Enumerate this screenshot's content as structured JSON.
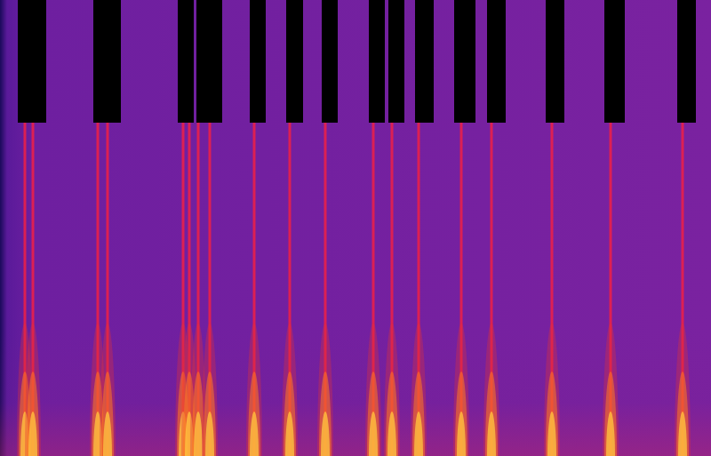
{
  "chart_data": {
    "type": "spectrogram",
    "tick_labels": false,
    "xlim": [
      0,
      800
    ],
    "ylim": [
      0,
      513
    ],
    "onsets": [
      28,
      37,
      110,
      121,
      206,
      213,
      223,
      236,
      286,
      326,
      366,
      420,
      441,
      471,
      519,
      553,
      621,
      687,
      768
    ],
    "blocks": [
      [
        20,
        52
      ],
      [
        105,
        136
      ],
      [
        200,
        218
      ],
      [
        221,
        250
      ],
      [
        281,
        299
      ],
      [
        322,
        341
      ],
      [
        362,
        380
      ],
      [
        415,
        433
      ],
      [
        437,
        455
      ],
      [
        467,
        488
      ],
      [
        511,
        535
      ],
      [
        548,
        569
      ],
      [
        614,
        635
      ],
      [
        680,
        703
      ],
      [
        762,
        783
      ]
    ],
    "block_range": [
      375,
      513
    ]
  }
}
